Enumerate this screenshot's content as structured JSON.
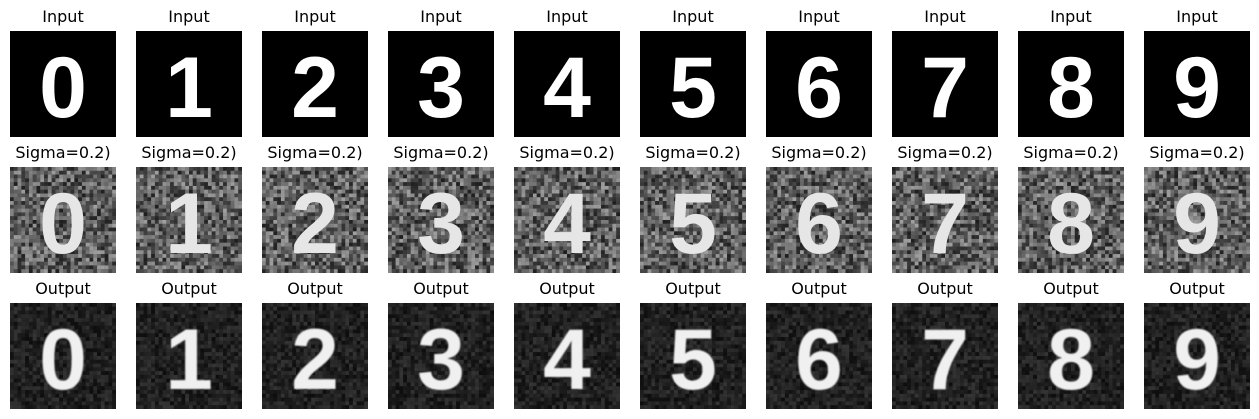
{
  "rows": [
    {
      "label": "Input",
      "kind": "clean"
    },
    {
      "label": "Sigma=0.2)",
      "kind": "noisy"
    },
    {
      "label": "Output",
      "kind": "denoised"
    }
  ],
  "digits": [
    {
      "id": "0",
      "glyph": "0"
    },
    {
      "id": "1",
      "glyph": "1"
    },
    {
      "id": "2",
      "glyph": "2"
    },
    {
      "id": "3",
      "glyph": "3"
    },
    {
      "id": "4",
      "glyph": "4"
    },
    {
      "id": "5",
      "glyph": "5"
    },
    {
      "id": "6",
      "glyph": "6"
    },
    {
      "id": "7",
      "glyph": "7"
    },
    {
      "id": "8",
      "glyph": "8"
    },
    {
      "id": "9",
      "glyph": "9"
    }
  ],
  "colors": {
    "clean_bg": "#000000",
    "noisy_bg": "#5a5a5a",
    "denoised_bg": "#1e1e1e",
    "stroke_clean": "#ffffff",
    "stroke_noisy": "#e6e6e6",
    "stroke_denoised": "#f0f0f0"
  }
}
